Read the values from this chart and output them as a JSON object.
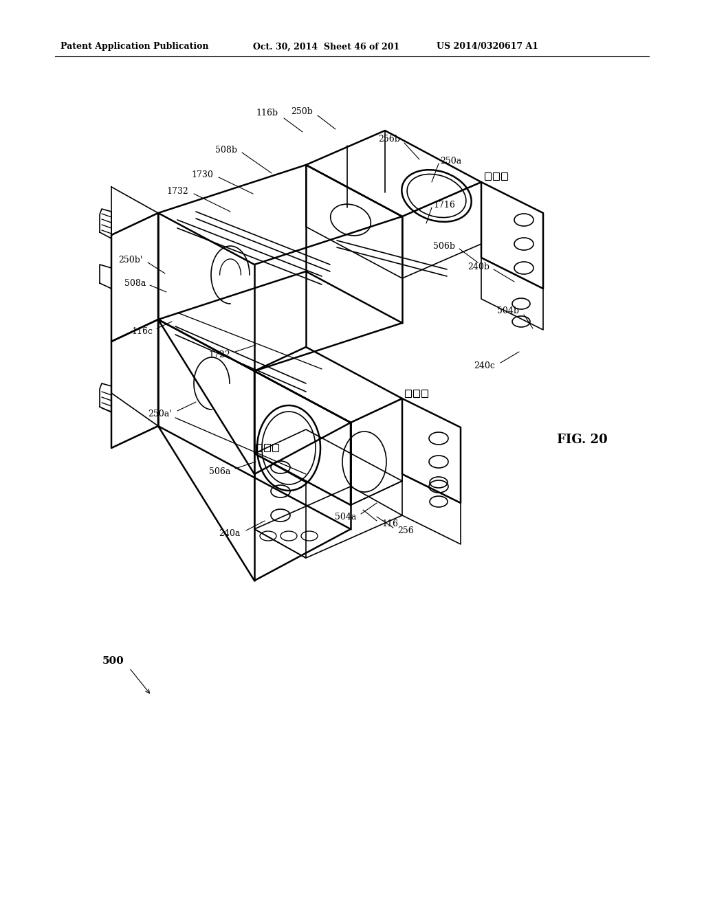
{
  "background_color": "#ffffff",
  "header_left": "Patent Application Publication",
  "header_mid": "Oct. 30, 2014  Sheet 46 of 201",
  "header_right": "US 2014/0320617 A1",
  "fig_label": "FIG. 20",
  "line_color": "#000000"
}
